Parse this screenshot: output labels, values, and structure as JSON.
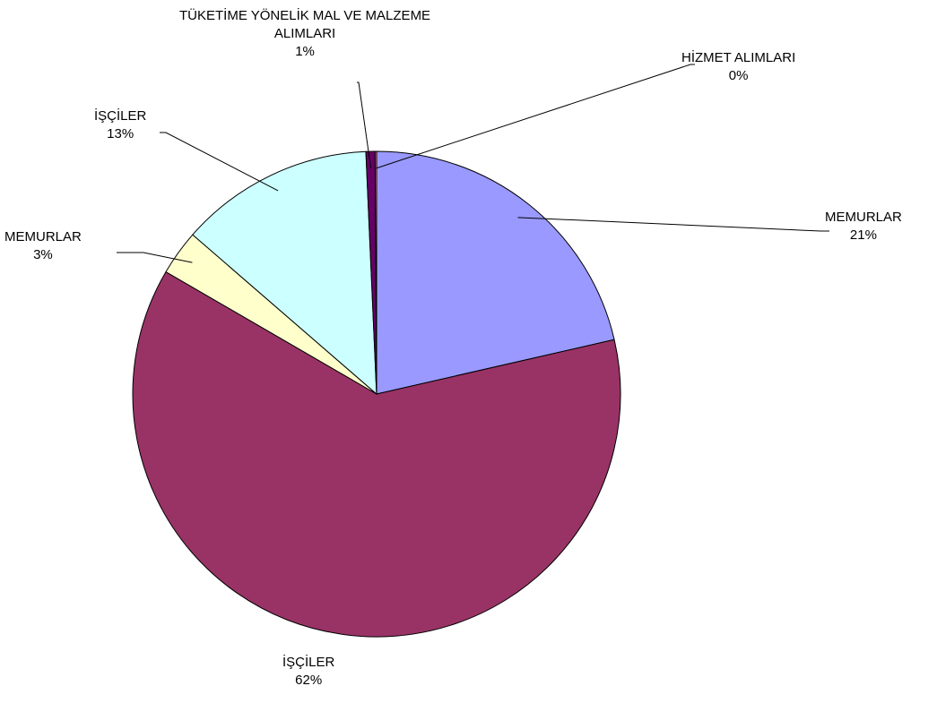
{
  "chart_data": {
    "type": "pie",
    "start_angle_deg": 0,
    "direction": "clockwise",
    "slices": [
      {
        "label": "MEMURLAR",
        "pct_label": "21%",
        "value": 21.4,
        "color": "#9999ff"
      },
      {
        "label": "İŞÇİLER",
        "pct_label": "62%",
        "value": 62.0,
        "color": "#993366"
      },
      {
        "label": "MEMURLAR",
        "pct_label": "3%",
        "value": 3.0,
        "color": "#ffffcc"
      },
      {
        "label": "İŞÇİLER",
        "pct_label": "13%",
        "value": 12.9,
        "color": "#ccffff"
      },
      {
        "label": "TÜKETİME YÖNELİK MAL VE MALZEME ALIMLARI",
        "label_line1": "TÜKETİME YÖNELİK MAL VE MALZEME",
        "label_line2": "ALIMLARI",
        "pct_label": "1%",
        "value": 0.6,
        "color": "#660066"
      },
      {
        "label": "HİZMET ALIMLARI",
        "pct_label": "0%",
        "value": 0.1,
        "color": "#ff8080"
      }
    ],
    "legend": "none"
  }
}
